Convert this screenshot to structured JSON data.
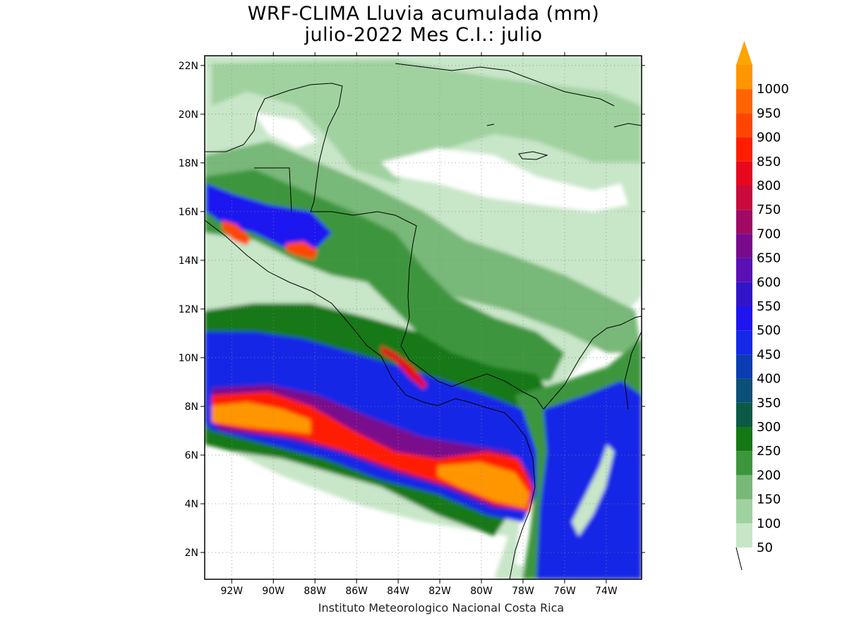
{
  "title": {
    "line1": "WRF-CLIMA Lluvia acumulada (mm)",
    "line2": "julio-2022 Mes C.I.: julio"
  },
  "credit": "Instituto Meteorologico Nacional Costa Rica",
  "map": {
    "lon_range": [
      -93.3,
      -72.3
    ],
    "lat_range": [
      0.9,
      22.4
    ],
    "lon_ticks": [
      {
        "value": -92,
        "label": "92W"
      },
      {
        "value": -90,
        "label": "90W"
      },
      {
        "value": -88,
        "label": "88W"
      },
      {
        "value": -86,
        "label": "86W"
      },
      {
        "value": -84,
        "label": "84W"
      },
      {
        "value": -82,
        "label": "82W"
      },
      {
        "value": -80,
        "label": "80W"
      },
      {
        "value": -78,
        "label": "78W"
      },
      {
        "value": -76,
        "label": "76W"
      },
      {
        "value": -74,
        "label": "74W"
      }
    ],
    "lat_ticks": [
      {
        "value": 2,
        "label": "2N"
      },
      {
        "value": 4,
        "label": "4N"
      },
      {
        "value": 6,
        "label": "6N"
      },
      {
        "value": 8,
        "label": "8N"
      },
      {
        "value": 10,
        "label": "10N"
      },
      {
        "value": 12,
        "label": "12N"
      },
      {
        "value": 14,
        "label": "14N"
      },
      {
        "value": 16,
        "label": "16N"
      },
      {
        "value": 18,
        "label": "18N"
      },
      {
        "value": 20,
        "label": "20N"
      },
      {
        "value": 22,
        "label": "22N"
      }
    ],
    "gridlines": "dotted",
    "unit": "mm",
    "colorbar_position": "right"
  },
  "colorbar": [
    {
      "value": "50",
      "color": "#c8e6c8"
    },
    {
      "value": "100",
      "color": "#a0d2a0"
    },
    {
      "value": "150",
      "color": "#78b878"
    },
    {
      "value": "200",
      "color": "#3c963c"
    },
    {
      "value": "250",
      "color": "#147814"
    },
    {
      "value": "300",
      "color": "#0a5a46"
    },
    {
      "value": "350",
      "color": "#0a5078"
    },
    {
      "value": "400",
      "color": "#0a3cb4"
    },
    {
      "value": "450",
      "color": "#1428e6"
    },
    {
      "value": "500",
      "color": "#1e14f0"
    },
    {
      "value": "550",
      "color": "#3214c8"
    },
    {
      "value": "600",
      "color": "#5a10b4"
    },
    {
      "value": "650",
      "color": "#7a0a8c"
    },
    {
      "value": "700",
      "color": "#a00a64"
    },
    {
      "value": "750",
      "color": "#c80a3c"
    },
    {
      "value": "800",
      "color": "#e6081e"
    },
    {
      "value": "850",
      "color": "#ff1e00"
    },
    {
      "value": "900",
      "color": "#ff4600"
    },
    {
      "value": "950",
      "color": "#ff6400"
    },
    {
      "value": "1000",
      "color": "#ff9600"
    }
  ],
  "colorbar_top_arrow_color": "#ffa500"
}
